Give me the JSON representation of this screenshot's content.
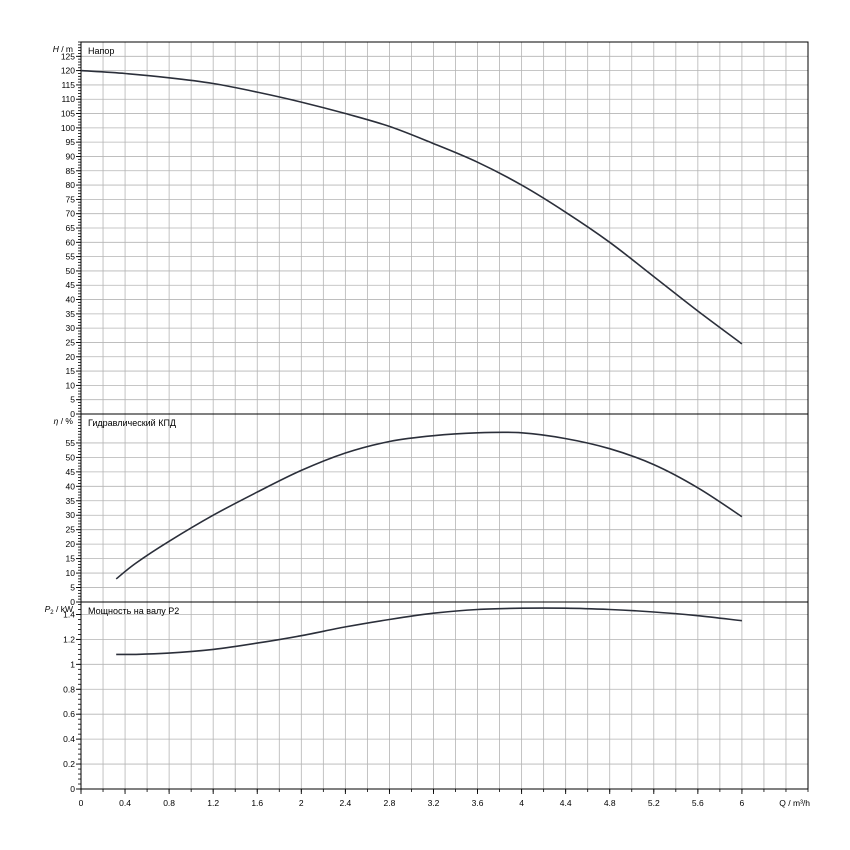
{
  "chart_data": [
    {
      "type": "line",
      "title": "Напор",
      "ylabel_symbol": "H",
      "ylabel_unit": "m",
      "ylim": [
        0,
        130
      ],
      "yticks": [
        "0",
        "5",
        "10",
        "15",
        "20",
        "25",
        "30",
        "35",
        "40",
        "45",
        "50",
        "55",
        "60",
        "65",
        "70",
        "75",
        "80",
        "85",
        "90",
        "95",
        "100",
        "105",
        "110",
        "115",
        "120",
        "125"
      ],
      "grid": true,
      "series": [
        {
          "x": [
            0,
            0.4,
            0.8,
            1.2,
            1.6,
            2.0,
            2.4,
            2.8,
            3.2,
            3.6,
            4.0,
            4.4,
            4.8,
            5.2,
            5.6,
            6.0
          ],
          "y": [
            120,
            119,
            117.5,
            115.5,
            112.5,
            109,
            105,
            100.5,
            94.5,
            88,
            80,
            70.5,
            60,
            48,
            36,
            24.5
          ]
        }
      ]
    },
    {
      "type": "line",
      "title": "Гидравлический КПД",
      "ylabel_symbol": "η",
      "ylabel_unit": "%",
      "ylim": [
        0,
        65
      ],
      "yticks": [
        "0",
        "5",
        "10",
        "15",
        "20",
        "25",
        "30",
        "35",
        "40",
        "45",
        "50",
        "55"
      ],
      "grid": true,
      "series": [
        {
          "x": [
            0.32,
            0.5,
            0.8,
            1.2,
            1.6,
            2.0,
            2.4,
            2.8,
            3.2,
            3.6,
            4.0,
            4.4,
            4.8,
            5.2,
            5.6,
            6.0
          ],
          "y": [
            8,
            13.5,
            21,
            30,
            38,
            45.5,
            51.5,
            55.5,
            57.5,
            58.5,
            58.5,
            56.5,
            53,
            47.5,
            39.5,
            29.5
          ]
        }
      ]
    },
    {
      "type": "line",
      "title": "Мощность на валу P2",
      "ylabel_symbol": "P",
      "ylabel_sub": "2",
      "ylabel_unit": "kW",
      "ylim": [
        0,
        1.5
      ],
      "yticks": [
        "0",
        "0.2",
        "0.4",
        "0.6",
        "0.8",
        "1",
        "1.2",
        "1.4"
      ],
      "grid": true,
      "series": [
        {
          "x": [
            0.32,
            0.5,
            0.8,
            1.2,
            1.6,
            2.0,
            2.4,
            2.8,
            3.2,
            3.6,
            4.0,
            4.4,
            4.8,
            5.2,
            5.6,
            6.0
          ],
          "y": [
            1.08,
            1.08,
            1.09,
            1.12,
            1.17,
            1.23,
            1.3,
            1.36,
            1.41,
            1.44,
            1.45,
            1.45,
            1.44,
            1.42,
            1.39,
            1.35
          ]
        }
      ]
    }
  ],
  "x_axis": {
    "label": "Q / m³/h",
    "xlim": [
      0,
      6.6
    ],
    "ticks": [
      "0",
      "0.4",
      "0.8",
      "1.2",
      "1.6",
      "2",
      "2.4",
      "2.8",
      "3.2",
      "3.6",
      "4",
      "4.4",
      "4.8",
      "5.2",
      "5.6",
      "6"
    ]
  },
  "colors": {
    "curve": "#2b2f3a",
    "grid": "#b4b4b4",
    "frame": "#000000"
  }
}
